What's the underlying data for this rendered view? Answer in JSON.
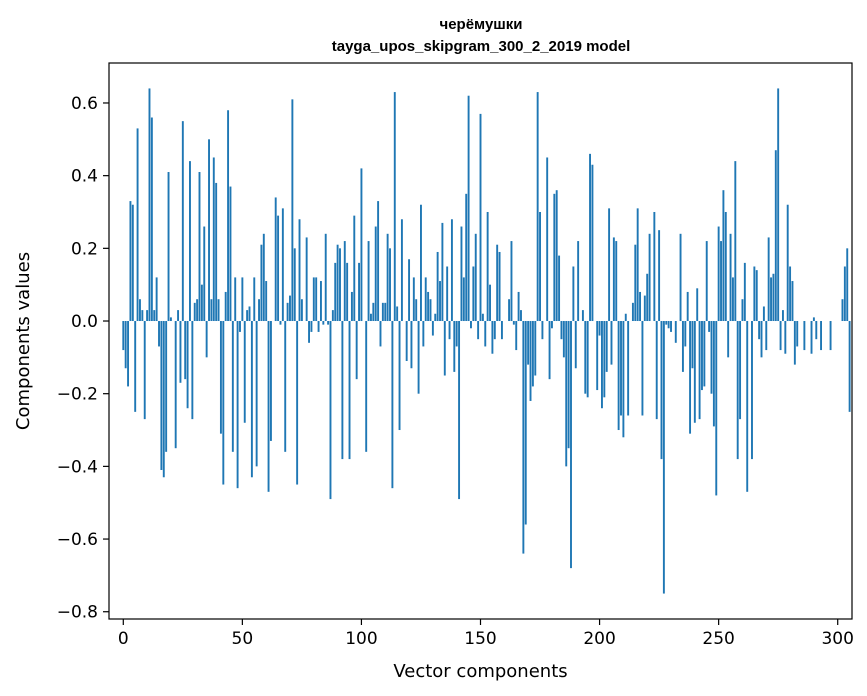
{
  "chart_data": {
    "type": "bar",
    "title": [
      "черёмушки",
      "tayga_upos_skipgram_300_2_2019 model"
    ],
    "xlabel": "Vector components",
    "ylabel": "Components values",
    "xlim": [
      -6,
      306
    ],
    "ylim": [
      -0.82,
      0.71
    ],
    "x_ticks": [
      0,
      50,
      100,
      150,
      200,
      250,
      300
    ],
    "x_tick_labels": [
      "0",
      "50",
      "100",
      "150",
      "200",
      "250",
      "300"
    ],
    "y_ticks": [
      -0.8,
      -0.6,
      -0.4,
      -0.2,
      0.0,
      0.2,
      0.4,
      0.6
    ],
    "y_tick_labels": [
      "−0.8",
      "−0.6",
      "−0.4",
      "−0.2",
      "0.0",
      "0.2",
      "0.4",
      "0.6"
    ],
    "bar_color": "#1f77b4",
    "grid": false,
    "values": [
      -0.08,
      -0.13,
      -0.18,
      0.33,
      0.32,
      -0.25,
      0.53,
      0.06,
      0.03,
      -0.27,
      0.03,
      0.64,
      0.56,
      0.03,
      0.12,
      -0.07,
      -0.41,
      -0.43,
      -0.36,
      0.41,
      0.01,
      0.0,
      -0.35,
      0.03,
      -0.17,
      0.55,
      -0.16,
      -0.24,
      0.44,
      -0.27,
      0.05,
      0.06,
      0.41,
      0.1,
      0.26,
      -0.1,
      0.5,
      0.06,
      0.45,
      0.38,
      0.06,
      -0.31,
      -0.45,
      0.08,
      0.58,
      0.37,
      -0.36,
      0.12,
      -0.46,
      -0.03,
      0.12,
      -0.28,
      0.03,
      0.04,
      -0.43,
      0.12,
      -0.4,
      0.06,
      0.21,
      0.24,
      0.11,
      -0.47,
      -0.33,
      0.0,
      0.34,
      0.29,
      -0.01,
      0.31,
      -0.36,
      0.05,
      0.07,
      0.61,
      0.2,
      -0.45,
      0.28,
      0.06,
      0.0,
      0.23,
      -0.06,
      -0.03,
      0.12,
      0.12,
      -0.03,
      0.11,
      -0.01,
      0.24,
      -0.01,
      -0.49,
      0.03,
      0.16,
      0.21,
      0.2,
      -0.38,
      0.22,
      0.16,
      -0.38,
      0.08,
      0.29,
      -0.16,
      0.16,
      0.42,
      0.0,
      -0.36,
      0.22,
      0.02,
      0.05,
      0.26,
      0.33,
      -0.07,
      0.05,
      0.05,
      0.24,
      0.2,
      -0.46,
      0.63,
      0.04,
      -0.3,
      0.28,
      0.0,
      -0.11,
      0.17,
      -0.13,
      0.12,
      0.06,
      -0.2,
      0.32,
      -0.07,
      0.12,
      0.08,
      0.06,
      -0.04,
      0.02,
      0.19,
      0.11,
      0.27,
      -0.15,
      0.15,
      -0.05,
      0.28,
      -0.14,
      -0.07,
      -0.49,
      0.26,
      0.12,
      0.35,
      0.62,
      -0.02,
      0.15,
      0.24,
      -0.05,
      0.57,
      0.02,
      -0.07,
      0.3,
      0.1,
      -0.09,
      -0.05,
      0.21,
      0.19,
      -0.05,
      0.0,
      0.0,
      0.06,
      0.22,
      -0.01,
      -0.08,
      0.08,
      0.03,
      -0.64,
      -0.56,
      -0.12,
      -0.22,
      -0.18,
      -0.15,
      0.63,
      0.3,
      -0.05,
      0.0,
      0.45,
      -0.16,
      -0.02,
      0.35,
      0.36,
      0.18,
      -0.05,
      -0.1,
      -0.4,
      -0.35,
      -0.68,
      0.15,
      -0.13,
      0.22,
      0.0,
      0.03,
      -0.2,
      -0.21,
      0.46,
      0.43,
      0.0,
      -0.19,
      -0.04,
      -0.24,
      -0.21,
      -0.14,
      0.31,
      -0.12,
      0.23,
      0.22,
      -0.3,
      -0.26,
      -0.32,
      0.02,
      -0.26,
      0.0,
      0.05,
      0.21,
      0.31,
      0.08,
      -0.26,
      0.07,
      0.13,
      0.24,
      0.0,
      0.3,
      -0.27,
      0.25,
      -0.38,
      -0.75,
      -0.01,
      -0.02,
      -0.03,
      0.0,
      -0.06,
      0.0,
      0.24,
      -0.14,
      -0.07,
      0.08,
      -0.31,
      -0.13,
      -0.28,
      0.09,
      -0.27,
      -0.19,
      -0.18,
      0.22,
      -0.03,
      -0.2,
      -0.29,
      -0.48,
      0.26,
      0.22,
      0.36,
      0.3,
      -0.1,
      0.24,
      0.12,
      0.44,
      -0.38,
      -0.27,
      0.06,
      0.16,
      -0.47,
      0.0,
      -0.38,
      0.15,
      0.14,
      -0.05,
      -0.1,
      0.04,
      -0.08,
      0.23,
      0.12,
      0.13,
      0.47,
      0.64,
      -0.08,
      0.03,
      -0.09,
      0.32,
      0.15,
      0.11,
      -0.12,
      -0.07,
      0.0,
      0.0,
      -0.08,
      0.0,
      0.0,
      -0.09,
      0.01,
      -0.05,
      0.0,
      -0.08,
      0.0,
      0.0,
      0.0,
      -0.08,
      0.0,
      0.0,
      0.0,
      0.0,
      0.06,
      0.15,
      0.2,
      -0.25,
      0.0
    ]
  }
}
